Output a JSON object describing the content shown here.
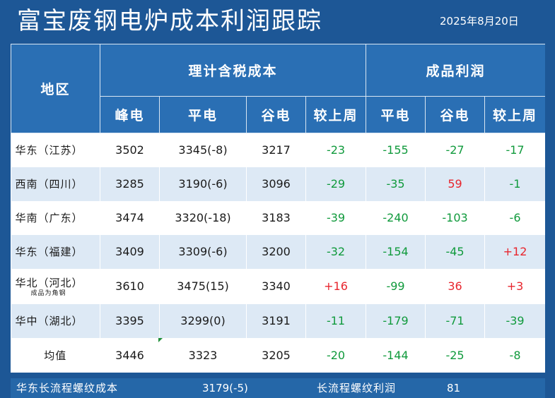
{
  "title": "富宝废钢电炉成本利润跟踪",
  "date": "2025年8月20日",
  "header": {
    "region": "地区",
    "cost_group": "理计含税成本",
    "profit_group": "成品利润",
    "cost_cols": [
      "峰电",
      "平电",
      "谷电",
      "较上周"
    ],
    "profit_cols": [
      "平电",
      "谷电",
      "较上周"
    ]
  },
  "rows": [
    {
      "region": "华东（江苏）",
      "note": "",
      "peak": "3502",
      "flat": "3345(-8)",
      "valley": "3217",
      "cost_wow": "-23",
      "p_flat": "-155",
      "p_valley": "-27",
      "p_wow": "-17"
    },
    {
      "region": "西南（四川）",
      "note": "",
      "peak": "3285",
      "flat": "3190(-6)",
      "valley": "3096",
      "cost_wow": "-29",
      "p_flat": "-35",
      "p_valley": "59",
      "p_wow": "-1"
    },
    {
      "region": "华南（广东）",
      "note": "",
      "peak": "3474",
      "flat": "3320(-18)",
      "valley": "3183",
      "cost_wow": "-39",
      "p_flat": "-240",
      "p_valley": "-103",
      "p_wow": "-6"
    },
    {
      "region": "华东（福建）",
      "note": "",
      "peak": "3409",
      "flat": "3309(-6)",
      "valley": "3200",
      "cost_wow": "-32",
      "p_flat": "-154",
      "p_valley": "-45",
      "p_wow": "+12"
    },
    {
      "region": "华北（河北）",
      "note": "成品为角钢",
      "peak": "3610",
      "flat": "3475(15)",
      "valley": "3340",
      "cost_wow": "+16",
      "p_flat": "-99",
      "p_valley": "36",
      "p_wow": "+3"
    },
    {
      "region": "华中（湖北）",
      "note": "",
      "peak": "3395",
      "flat": "3299(0)",
      "valley": "3191",
      "cost_wow": "-11",
      "p_flat": "-179",
      "p_valley": "-71",
      "p_wow": "-39"
    },
    {
      "region": "均值",
      "note": "",
      "peak": "3446",
      "flat": "3323",
      "valley": "3205",
      "cost_wow": "-20",
      "p_flat": "-144",
      "p_valley": "-25",
      "p_wow": "-8"
    }
  ],
  "footer": {
    "long_cost_label": "华东长流程螺纹成本",
    "long_cost_value": "3179(-5)",
    "long_profit_label": "长流程螺纹利润",
    "long_profit_value": "81"
  },
  "colors": {
    "negative": "#109a3c",
    "positive": "#e8252d",
    "header_bg": "#2a6fb4",
    "page_bg": "#1d5796",
    "stripe": "#dde9f5"
  }
}
